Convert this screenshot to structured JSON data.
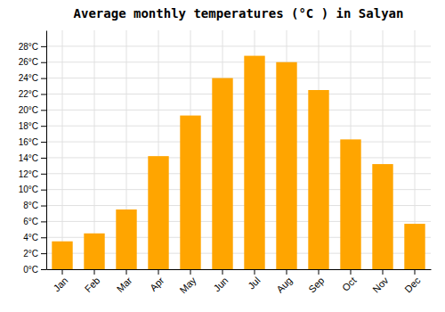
{
  "chart_data": {
    "type": "bar",
    "title": "Average monthly temperatures (°C ) in Salyan",
    "categories": [
      "Jan",
      "Feb",
      "Mar",
      "Apr",
      "May",
      "Jun",
      "Jul",
      "Aug",
      "Sep",
      "Oct",
      "Nov",
      "Dec"
    ],
    "values": [
      3.5,
      4.5,
      7.5,
      14.2,
      19.3,
      24.0,
      26.8,
      26.0,
      22.5,
      16.3,
      13.2,
      5.7
    ],
    "color": "#FFA500",
    "ylim": [
      0,
      30
    ],
    "yticks": [
      {
        "value": 0,
        "label": "0°C"
      },
      {
        "value": 2,
        "label": "2°C"
      },
      {
        "value": 4,
        "label": "4°C"
      },
      {
        "value": 6,
        "label": "6°C"
      },
      {
        "value": 8,
        "label": "8°C"
      },
      {
        "value": 10,
        "label": "10°C"
      },
      {
        "value": 12,
        "label": "12°C"
      },
      {
        "value": 14,
        "label": "14°C"
      },
      {
        "value": 16,
        "label": "16°C"
      },
      {
        "value": 18,
        "label": "18°C"
      },
      {
        "value": 20,
        "label": "20°C"
      },
      {
        "value": 22,
        "label": "22°C"
      },
      {
        "value": 24,
        "label": "24°C"
      },
      {
        "value": 26,
        "label": "26°C"
      },
      {
        "value": 28,
        "label": "28°C"
      }
    ],
    "grid": true
  }
}
